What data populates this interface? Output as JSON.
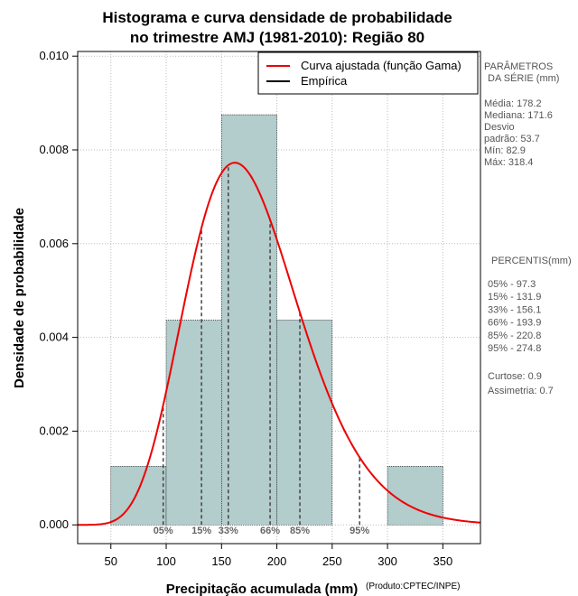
{
  "chart_data": {
    "type": "bar",
    "title_line1": "Histograma e curva densidade de probabilidade",
    "title_line2": "no trimestre AMJ (1981-2010): Região 80",
    "xlabel": "Precipitação acumulada (mm)",
    "ylabel": "Densidade de probabilidade",
    "credit": "(Produto:CPTEC/INPE)",
    "xlim": [
      20,
      384
    ],
    "ylim": [
      -0.0004,
      0.0101
    ],
    "x_ticks": [
      50,
      100,
      150,
      200,
      250,
      300,
      350
    ],
    "y_ticks": [
      0.0,
      0.002,
      0.004,
      0.006,
      0.008,
      0.01
    ],
    "y_tick_labels": [
      "0.000",
      "0.002",
      "0.004",
      "0.006",
      "0.008",
      "0.010"
    ],
    "grid": true,
    "legend_position": "top-right",
    "bins": [
      {
        "from": 50,
        "to": 100,
        "density": 0.00125
      },
      {
        "from": 100,
        "to": 150,
        "density": 0.00437
      },
      {
        "from": 150,
        "to": 200,
        "density": 0.00875
      },
      {
        "from": 200,
        "to": 250,
        "density": 0.00437
      },
      {
        "from": 250,
        "to": 300,
        "density": 0.0
      },
      {
        "from": 300,
        "to": 350,
        "density": 0.00125
      }
    ],
    "fitted_curve": {
      "name": "Curva ajustada (função Gama)",
      "distribution": "gamma",
      "color": "#ee0000",
      "mean": 178.2,
      "sd": 53.7,
      "x_range": [
        20,
        384
      ]
    },
    "empirical_legend": {
      "name": "Empírica",
      "color": "#000000"
    },
    "bar_fill": "#b3cccc",
    "percentile_markers": [
      {
        "label": "05%",
        "value": 97.3
      },
      {
        "label": "15%",
        "value": 131.9
      },
      {
        "label": "33%",
        "value": 156.1
      },
      {
        "label": "66%",
        "value": 193.9
      },
      {
        "label": "85%",
        "value": 220.8
      },
      {
        "label": "95%",
        "value": 274.8
      }
    ],
    "side_panel": {
      "params_header_1": "PARÂMETROS",
      "params_header_2": "DA SÉRIE (mm)",
      "stats": [
        "Média:  178.2",
        "Mediana:  171.6",
        "Desvio",
        "padrão:  53.7",
        "Mín:  82.9",
        "Máx:  318.4"
      ],
      "percentis_header": "PERCENTIS(mm)",
      "percentis": [
        "05% -  97.3",
        "15% -  131.9",
        "33% -  156.1",
        "66% -  193.9",
        "85% -  220.8",
        "95% -  274.8"
      ],
      "extra": [
        "Curtose:  0.9",
        "Assimetria:  0.7"
      ]
    }
  }
}
